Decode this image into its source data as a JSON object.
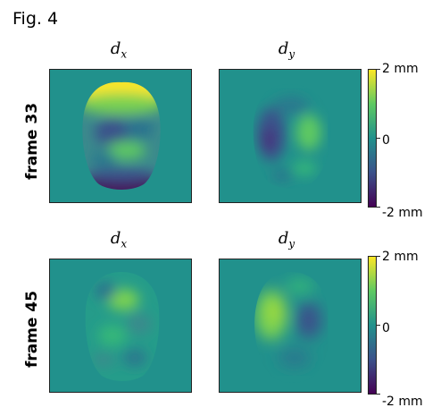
{
  "figure_label": "Fig. 4",
  "columns": [
    {
      "symbol": "d",
      "subscript": "x"
    },
    {
      "symbol": "d",
      "subscript": "y"
    }
  ],
  "rows": [
    {
      "label": "frame 33"
    },
    {
      "label": "frame 45"
    }
  ],
  "colorbar": {
    "colormap": "viridis",
    "max_label": "2 mm",
    "mid_label": "0",
    "min_label": "-2 mm",
    "colors": {
      "max": "#fde725",
      "mid": "#21918c",
      "min": "#440154"
    }
  }
}
